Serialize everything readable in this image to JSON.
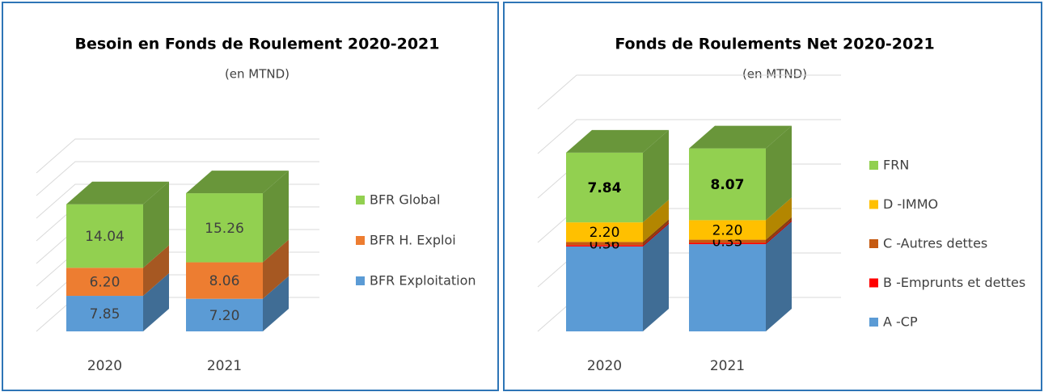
{
  "chart_data": [
    {
      "type": "bar3d-stacked",
      "title": "Besoin en Fonds de Roulement 2020-2021",
      "subtitle": "(en MTND)",
      "categories": [
        "2020",
        "2021"
      ],
      "series": [
        {
          "name": "BFR Exploitation",
          "color": "#5b9bd5",
          "values": [
            7.85,
            7.2
          ],
          "value_labels": [
            "7.85",
            "7.20"
          ]
        },
        {
          "name": "BFR H. Exploi",
          "color": "#ed7d31",
          "values": [
            6.2,
            8.06
          ],
          "value_labels": [
            "6.20",
            "8.06"
          ]
        },
        {
          "name": "BFR Global",
          "color": "#92d050",
          "values": [
            14.04,
            15.26
          ]
        }
      ],
      "ylim": [
        0,
        35
      ],
      "yticks": [
        0,
        5,
        10,
        15,
        20,
        25,
        30,
        35
      ],
      "grid": true,
      "legend": "right"
    },
    {
      "type": "bar3d-stacked",
      "title": "Fonds de Roulements Net 2020-2021",
      "subtitle": "(en MTND)",
      "categories": [
        "2020",
        "2021"
      ],
      "series": [
        {
          "name": "A -CP",
          "color": "#5b9bd5",
          "values": [
            9.55,
            9.81
          ]
        },
        {
          "name": "B -Emprunts et dettes",
          "color": "#ff0000",
          "values": [
            0.15,
            0.15
          ]
        },
        {
          "name": "C -Autres dettes",
          "color": "#c55a11",
          "values": [
            0.36,
            0.35
          ]
        },
        {
          "name": "D -IMMO",
          "color": "#ffc000",
          "values": [
            2.2,
            2.2
          ],
          "value_labels": [
            "2.20",
            "2.20"
          ]
        },
        {
          "name": "FRN",
          "color": "#92d050",
          "values": [
            7.84,
            8.07
          ]
        }
      ],
      "ylim": [
        0,
        25
      ],
      "yticks": [
        0,
        5,
        10,
        15,
        20,
        25
      ],
      "grid": true,
      "legend": "right"
    }
  ]
}
